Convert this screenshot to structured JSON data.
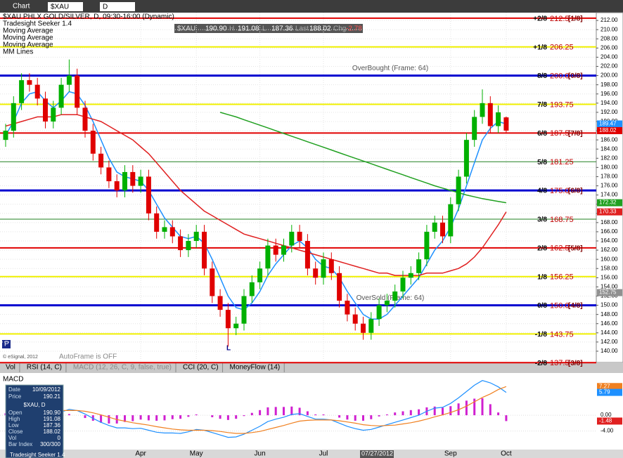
{
  "toolbar": {
    "title": "Chart",
    "symbol": "$XAU",
    "interval": "D"
  },
  "quote_box": {
    "symbol": "$XAU",
    "open": "190.90",
    "high_label": "H",
    "high": "191.08",
    "low_label": "L",
    "low": "187.36",
    "last_label": "Last",
    "last": "188.02",
    "change_label": "Chg",
    "change": "-2.78"
  },
  "tabs": [
    "Vol",
    "RSI (14, C)",
    "MACD (12, 26, C, 9, false, true)",
    "CCI (20, C)",
    "MoneyFlow (14)"
  ],
  "crosshair_date": "07/27/2012",
  "annotations": {
    "autoframe": "AutoFrame is OFF",
    "copyright": "© eSignal, 2012",
    "low_marker": "L",
    "p_marker": "P"
  },
  "data_window": {
    "rows": [
      [
        "Date",
        "10/09/2012"
      ],
      [
        "Price",
        "190.21"
      ]
    ],
    "header": "$XAU, D",
    "rows2": [
      [
        "Open",
        "190.90"
      ],
      [
        "High",
        "191.08"
      ],
      [
        "Low",
        "187.36"
      ],
      [
        "Close",
        "188.02"
      ],
      [
        "Vol",
        "0"
      ],
      [
        "Bar Index",
        "300/300"
      ]
    ],
    "footer": "Tradesight Seeker 1.4"
  },
  "chart_data": [
    {
      "type": "candlestick",
      "title": "$XAU PHLX GOLD/SILVER, D, 09:30-16:00 (Dynamic)",
      "indicator": "Tradesight Seeker 1.4",
      "mm_title": "MM Lines",
      "categories": [
        null,
        null,
        null,
        null,
        null,
        null,
        null,
        null,
        null,
        null,
        null,
        null,
        null,
        null,
        null,
        null,
        null,
        "Apr",
        null,
        null,
        null,
        null,
        null,
        null,
        "May",
        null,
        null,
        null,
        null,
        null,
        null,
        null,
        "Jun",
        null,
        null,
        null,
        null,
        null,
        null,
        null,
        "Jul",
        null,
        null,
        null,
        null,
        null,
        null,
        null,
        null,
        null,
        null,
        null,
        null,
        null,
        null,
        null,
        "Sep",
        null,
        null,
        null,
        null,
        null,
        null,
        "Oct"
      ],
      "open": [
        186,
        188,
        194,
        199,
        198,
        195,
        190,
        193,
        198,
        200,
        193,
        188,
        183,
        180,
        177,
        175,
        179,
        176,
        178,
        170,
        166,
        167,
        165,
        162,
        164,
        166,
        158,
        152,
        149,
        145,
        146,
        152,
        155,
        158,
        163,
        161,
        163,
        166,
        164,
        158,
        156,
        160,
        157,
        151,
        148,
        146,
        144,
        147,
        150,
        151,
        153,
        156,
        157,
        160,
        166,
        168,
        165,
        172,
        178,
        186,
        191,
        194,
        189,
        190.9
      ],
      "high": [
        189.5,
        195.5,
        200.5,
        200.5,
        199.5,
        196.5,
        194.5,
        199.5,
        203.5,
        201.5,
        194.5,
        189.5,
        184.5,
        181.5,
        178.5,
        180.5,
        180.5,
        179.5,
        179.5,
        171.5,
        168.5,
        168.5,
        166.5,
        165.5,
        167.5,
        167.5,
        159.5,
        153.5,
        150.5,
        147.5,
        153.5,
        156.5,
        159.5,
        164.5,
        164.5,
        164.5,
        167.5,
        167.5,
        165.5,
        159.5,
        161.5,
        161.5,
        158.5,
        152.5,
        149.5,
        147.5,
        148.5,
        151.5,
        152.5,
        154.5,
        157.5,
        158.5,
        161.5,
        167.5,
        169.5,
        169.5,
        173.5,
        179.5,
        187.5,
        192.5,
        197,
        195.5,
        193.5,
        191.08
      ],
      "low": [
        184.5,
        186.5,
        192.5,
        196.5,
        193.5,
        188.5,
        188.5,
        191.5,
        196.5,
        191.5,
        186.5,
        181.5,
        178.5,
        175.5,
        173.5,
        173.5,
        174.5,
        174.5,
        168.5,
        164.5,
        164.5,
        163.5,
        160.5,
        160.5,
        162.5,
        156.5,
        150.5,
        147.5,
        141,
        143.5,
        144.5,
        150.5,
        153.5,
        156.5,
        159.5,
        159.5,
        161.5,
        162.5,
        156.5,
        154.5,
        154.5,
        155.5,
        149.5,
        146.5,
        144.5,
        142.5,
        142.5,
        145.5,
        148.5,
        149.5,
        151.5,
        154.5,
        155.5,
        158.5,
        164.5,
        163.5,
        163.5,
        170.5,
        176.5,
        184.5,
        189.5,
        187.5,
        187.5,
        187.36
      ],
      "close": [
        188,
        194,
        199,
        198,
        195,
        190,
        193,
        198,
        200,
        193,
        188,
        183,
        180,
        177,
        175,
        179,
        176,
        178,
        170,
        166,
        167,
        165,
        162,
        164,
        166,
        158,
        152,
        149,
        145,
        146,
        152,
        155,
        158,
        163,
        161,
        163,
        166,
        164,
        158,
        156,
        160,
        157,
        151,
        148,
        146,
        144,
        147,
        150,
        151,
        153,
        156,
        157,
        160,
        166,
        168,
        165,
        172,
        178,
        186,
        191,
        194,
        189,
        192,
        188.02
      ],
      "up_color": "#00b000",
      "down_color": "#e00000",
      "series": [
        {
          "name": "Moving Average",
          "color": "#1e90ff",
          "values": [
            187,
            190,
            194,
            196,
            196.5,
            194.5,
            193,
            194.5,
            196.5,
            196,
            193.5,
            190,
            186,
            182,
            179,
            178,
            177.5,
            177,
            175,
            172,
            169,
            167,
            165,
            164.5,
            165,
            163.5,
            160,
            156,
            152,
            149.5,
            149,
            150.5,
            153,
            156.5,
            159,
            161,
            163,
            164,
            162.5,
            160,
            158.5,
            158,
            156,
            153,
            150.5,
            148,
            147,
            147,
            148,
            150,
            152,
            154,
            156,
            159,
            162,
            164,
            167,
            171,
            176,
            181,
            186,
            188.5,
            190,
            189.47
          ]
        },
        {
          "name": "Moving Average",
          "color": "#e02020",
          "values": [
            189,
            189.5,
            190,
            190.5,
            191,
            191,
            191,
            191.5,
            191.5,
            191.5,
            191,
            190.5,
            190,
            189,
            188,
            187,
            186,
            184.5,
            183,
            181,
            179,
            177,
            175,
            173.5,
            172,
            170.5,
            169.5,
            168.5,
            167.5,
            166.5,
            165.5,
            165,
            164.5,
            164,
            163.5,
            163,
            162.5,
            162,
            161.5,
            161,
            160.5,
            160,
            159.5,
            159,
            158.5,
            158,
            157.5,
            157,
            157,
            156.5,
            156.5,
            156.5,
            156.5,
            157,
            157,
            157,
            157.5,
            158,
            159,
            160.5,
            162.5,
            165,
            167.5,
            170.33
          ]
        },
        {
          "name": "Moving Average",
          "color": "#20a020",
          "values": [
            null,
            null,
            null,
            null,
            null,
            null,
            null,
            null,
            null,
            null,
            null,
            null,
            null,
            null,
            null,
            null,
            null,
            null,
            null,
            null,
            null,
            null,
            null,
            null,
            null,
            null,
            null,
            192,
            191.5,
            191,
            190.4,
            189.8,
            189.2,
            188.6,
            188,
            187.4,
            186.8,
            186.2,
            185.6,
            185,
            184.4,
            183.8,
            183.2,
            182.6,
            182,
            181.4,
            180.8,
            180.2,
            179.6,
            179,
            178.4,
            177.8,
            177.2,
            176.6,
            176,
            175.5,
            175,
            174.5,
            174,
            173.6,
            173.2,
            172.9,
            172.6,
            172.32
          ]
        }
      ],
      "murrey_lines": [
        {
          "name": "+2/8",
          "value": 212.5,
          "tag": "[1/8]",
          "color": "#e00000",
          "width": 2
        },
        {
          "name": "+1/8",
          "value": 206.25,
          "color": "#f0f000",
          "width": 2
        },
        {
          "name": "8/8",
          "value": 200,
          "value_label": "200.0",
          "tag": "[0/8]",
          "color": "#0000d0",
          "width": 3,
          "note": "OverBought (Frame: 64)"
        },
        {
          "name": "7/8",
          "value": 193.75,
          "color": "#f0f000",
          "width": 2
        },
        {
          "name": "6/8",
          "value": 187.5,
          "tag": "[7/8]",
          "color": "#e00000",
          "width": 2
        },
        {
          "name": "5/8",
          "value": 181.25,
          "color": "#208020",
          "width": 1
        },
        {
          "name": "4/8",
          "value": 175,
          "value_label": "175.0",
          "tag": "[6/8]",
          "color": "#0000d0",
          "width": 3
        },
        {
          "name": "3/8",
          "value": 168.75,
          "color": "#208020",
          "width": 1
        },
        {
          "name": "2/8",
          "value": 162.5,
          "tag": "[5/8]",
          "color": "#e00000",
          "width": 2
        },
        {
          "name": "1/8",
          "value": 156.25,
          "color": "#f0f000",
          "width": 2
        },
        {
          "name": "0/8",
          "value": 150,
          "value_label": "150.0",
          "tag": "[4/8]",
          "color": "#0000d0",
          "width": 3,
          "note": "OverSold (Frame: 64)"
        },
        {
          "name": "-1/8",
          "value": 143.75,
          "color": "#f0f000",
          "width": 2
        },
        {
          "name": "-2/8",
          "value": 137.5,
          "tag": "[3/8]",
          "color": "#e00000",
          "width": 2
        }
      ],
      "price_tags": [
        {
          "value": 189.47,
          "color": "#1e90ff"
        },
        {
          "value": 188.02,
          "color": "#e00000"
        },
        {
          "value": 172.32,
          "color": "#20a020"
        },
        {
          "value": 170.33,
          "color": "#e02020"
        },
        {
          "value": 152.75,
          "color": "#909090"
        }
      ],
      "ylim": [
        137.7,
        213.7
      ],
      "yticks": [
        {
          "value": 140,
          "label": "140.00"
        },
        {
          "value": 142,
          "label": "142.00"
        },
        {
          "value": 144,
          "label": "144.00"
        },
        {
          "value": 146,
          "label": "146.00"
        },
        {
          "value": 148,
          "label": "148.00"
        },
        {
          "value": 150,
          "label": "150.00"
        },
        {
          "value": 152,
          "label": "152.00"
        },
        {
          "value": 154,
          "label": "154.00"
        },
        {
          "value": 156,
          "label": "156.00"
        },
        {
          "value": 158,
          "label": "158.00"
        },
        {
          "value": 160,
          "label": "160.00"
        },
        {
          "value": 162,
          "label": "162.00"
        },
        {
          "value": 164,
          "label": "164.00"
        },
        {
          "value": 166,
          "label": "166.00"
        },
        {
          "value": 168,
          "label": "168.00"
        },
        {
          "value": 170,
          "label": "170.00"
        },
        {
          "value": 172,
          "label": "172.00"
        },
        {
          "value": 174,
          "label": "174.00"
        },
        {
          "value": 176,
          "label": "176.00"
        },
        {
          "value": 178,
          "label": "178.00"
        },
        {
          "value": 180,
          "label": "180.00"
        },
        {
          "value": 182,
          "label": "182.00"
        },
        {
          "value": 184,
          "label": "184.00"
        },
        {
          "value": 186,
          "label": "186.00"
        },
        {
          "value": 188,
          "label": "188.00"
        },
        {
          "value": 190,
          "label": "190.00"
        },
        {
          "value": 192,
          "label": "192.00"
        },
        {
          "value": 194,
          "label": "194.00"
        },
        {
          "value": 196,
          "label": "196.00"
        },
        {
          "value": 198,
          "label": "198.00"
        },
        {
          "value": 200,
          "label": "200.00"
        },
        {
          "value": 202,
          "label": "202.00"
        },
        {
          "value": 204,
          "label": "204.00"
        },
        {
          "value": 206,
          "label": "206.00"
        },
        {
          "value": 208,
          "label": "208.00"
        },
        {
          "value": 210,
          "label": "210.00"
        },
        {
          "value": 212,
          "label": "212.00"
        }
      ],
      "grid": true
    },
    {
      "type": "macd",
      "title": "MACD",
      "macd": {
        "color": "#1e90ff",
        "values": [
          2,
          1.5,
          2,
          2.5,
          2,
          0.5,
          0,
          0.8,
          1.5,
          1.2,
          0.3,
          -0.8,
          -1.8,
          -2.6,
          -3.2,
          -3.2,
          -3.4,
          -3.3,
          -3.8,
          -4.3,
          -4.5,
          -4.5,
          -4.6,
          -4.2,
          -3.6,
          -3.8,
          -4.4,
          -5,
          -5.6,
          -5.5,
          -4.8,
          -3.8,
          -2.8,
          -1.6,
          -1,
          -0.5,
          0.2,
          0.4,
          -0.3,
          -1,
          -1,
          -1.2,
          -2,
          -2.8,
          -3.4,
          -3.8,
          -3.6,
          -3,
          -2.4,
          -1.8,
          -1.2,
          -0.6,
          0,
          1,
          1.8,
          2,
          3,
          4.4,
          6,
          7.6,
          8.8,
          8.2,
          7.2,
          5.79
        ]
      },
      "signal": {
        "color": "#f08020",
        "values": [
          1.5,
          1.5,
          1.6,
          1.8,
          1.9,
          1.6,
          1.3,
          1.2,
          1.2,
          1.2,
          1,
          0.6,
          0.1,
          -0.5,
          -1.1,
          -1.5,
          -1.9,
          -2.2,
          -2.5,
          -2.9,
          -3.2,
          -3.5,
          -3.7,
          -3.8,
          -3.8,
          -3.8,
          -3.9,
          -4.1,
          -4.4,
          -4.6,
          -4.6,
          -4.4,
          -4.1,
          -3.6,
          -3.1,
          -2.6,
          -2,
          -1.5,
          -1.3,
          -1.2,
          -1.2,
          -1.2,
          -1.4,
          -1.7,
          -2,
          -2.4,
          -2.6,
          -2.7,
          -2.6,
          -2.5,
          -2.2,
          -1.9,
          -1.5,
          -1,
          -0.4,
          0.1,
          0.7,
          1.4,
          2.3,
          3.4,
          4.5,
          5.4,
          6.5,
          7.27
        ]
      },
      "histogram": {
        "color": "#d020d0",
        "values": [
          0.5,
          0,
          0.4,
          0.7,
          0.1,
          -1.1,
          -1.3,
          -0.4,
          0.3,
          0,
          -0.7,
          -1.4,
          -1.9,
          -2.1,
          -2.1,
          -1.7,
          -1.5,
          -1.1,
          -1.3,
          -1.4,
          -1.3,
          -1,
          -0.9,
          -0.4,
          0.2,
          0,
          -0.5,
          -0.9,
          -1.2,
          -0.9,
          -0.2,
          0.6,
          1.3,
          2,
          2.1,
          2.1,
          2.2,
          1.9,
          1,
          0.2,
          0.2,
          0,
          -0.6,
          -1.1,
          -1.4,
          -1.4,
          -1,
          -0.3,
          0.2,
          0.7,
          1,
          1.3,
          1.5,
          2,
          2.2,
          1.9,
          2.3,
          3,
          3.7,
          4.2,
          4.3,
          2.8,
          0.7,
          -1.48
        ]
      },
      "tags": [
        {
          "value": 7.27,
          "color": "#f08020"
        },
        {
          "value": 5.79,
          "color": "#1e90ff"
        },
        {
          "value": -1.48,
          "color": "#e02020"
        }
      ],
      "ylim": [
        -8.7,
        10.7
      ],
      "yticks": [
        {
          "value": -4,
          "label": "-4.00"
        },
        {
          "value": 0,
          "label": "0.00"
        }
      ]
    }
  ]
}
